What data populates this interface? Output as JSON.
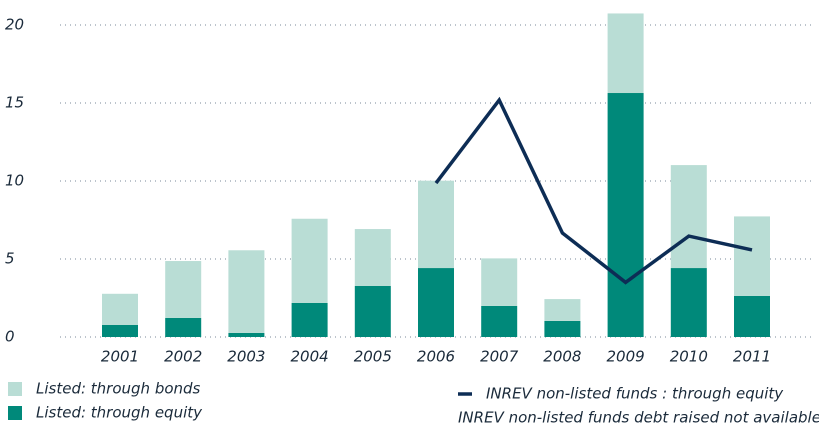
{
  "chart_data": {
    "type": "bar",
    "stacked": true,
    "categories": [
      "2001",
      "2002",
      "2003",
      "2004",
      "2005",
      "2006",
      "2007",
      "2008",
      "2009",
      "2010",
      "2011"
    ],
    "series": [
      {
        "name": "Listed: through equity",
        "color": "#00897a",
        "type": "bar",
        "values": [
          0.77,
          1.22,
          0.26,
          2.18,
          3.27,
          4.42,
          1.99,
          1.03,
          15.64,
          4.42,
          2.63
        ]
      },
      {
        "name": "Listed: through bonds",
        "color": "#b9ddd5",
        "type": "bar",
        "values": [
          2.0,
          3.65,
          5.3,
          5.4,
          3.65,
          5.6,
          3.05,
          1.4,
          5.1,
          6.6,
          5.1
        ]
      },
      {
        "name": "INREV non-listed funds : through equity",
        "color": "#0d2d55",
        "type": "line",
        "values": [
          null,
          null,
          null,
          null,
          null,
          9.87,
          15.19,
          6.67,
          3.5,
          6.47,
          5.58
        ]
      }
    ],
    "annotation": "INREV non-listed funds debt raised not available",
    "ylim": [
      0,
      20
    ],
    "yticks": [
      0,
      5,
      10,
      15,
      20
    ],
    "grid": true
  }
}
